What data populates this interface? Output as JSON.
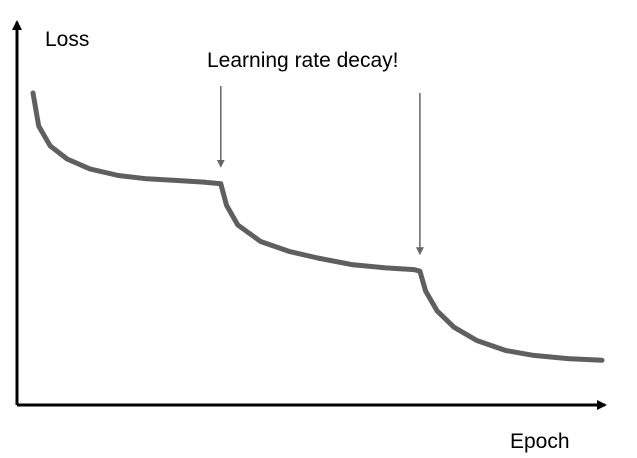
{
  "chart_data": {
    "type": "line",
    "title": "",
    "xlabel": "Epoch",
    "ylabel": "Loss",
    "annotation": "Learning rate decay!",
    "grid": false,
    "legend": "none",
    "series": [
      {
        "points": [
          [
            0.0,
            0.9
          ],
          [
            0.01,
            0.8
          ],
          [
            0.03,
            0.74
          ],
          [
            0.06,
            0.7
          ],
          [
            0.1,
            0.67
          ],
          [
            0.15,
            0.65
          ],
          [
            0.2,
            0.64
          ],
          [
            0.25,
            0.635
          ],
          [
            0.3,
            0.63
          ],
          [
            0.33,
            0.625
          ],
          [
            0.34,
            0.56
          ],
          [
            0.36,
            0.5
          ],
          [
            0.4,
            0.45
          ],
          [
            0.45,
            0.42
          ],
          [
            0.5,
            0.4
          ],
          [
            0.56,
            0.38
          ],
          [
            0.62,
            0.37
          ],
          [
            0.67,
            0.365
          ],
          [
            0.68,
            0.36
          ],
          [
            0.69,
            0.3
          ],
          [
            0.71,
            0.24
          ],
          [
            0.74,
            0.19
          ],
          [
            0.78,
            0.15
          ],
          [
            0.83,
            0.12
          ],
          [
            0.88,
            0.105
          ],
          [
            0.94,
            0.095
          ],
          [
            1.0,
            0.09
          ]
        ]
      }
    ],
    "decay_epochs": [
      0.33,
      0.68
    ],
    "xlim": [
      0,
      1
    ],
    "ylim": [
      0,
      1
    ],
    "colors": {
      "line": "#5f5f5f",
      "axis": "#000000",
      "arrow": "#666666"
    }
  }
}
